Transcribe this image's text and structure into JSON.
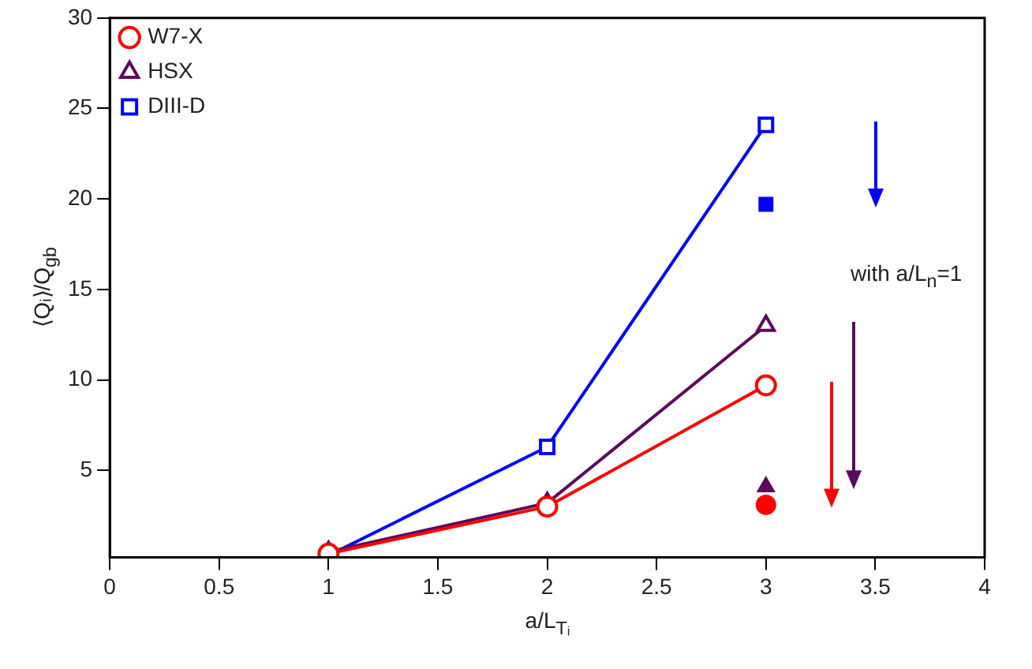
{
  "chart_data": {
    "type": "line",
    "xlabel": "a/L$_{Tᵢ}$",
    "ylabel": "⟨Qᵢ⟩/Q$_{gb}$",
    "xlim": [
      0,
      4
    ],
    "xticks": [
      0,
      0.5,
      1,
      1.5,
      2,
      2.5,
      3,
      3.5,
      4
    ],
    "ylim": [
      0.2,
      30
    ],
    "yticks": [
      5,
      10,
      15,
      20,
      25,
      30
    ],
    "grid": false,
    "legend": "top left",
    "annotations": [
      "with a/L$_{n}$=1"
    ],
    "series": [
      {
        "name": "W7-X",
        "color": "#ff0000",
        "marker": "circle",
        "x": [
          1,
          2,
          3
        ],
        "values": [
          0.4,
          3.0,
          9.7
        ]
      },
      {
        "name": "HSX",
        "color": "#5c0a5c",
        "marker": "triangle",
        "x": [
          1,
          2,
          3
        ],
        "values": [
          0.5,
          3.2,
          13.0
        ]
      },
      {
        "name": "DIII-D",
        "color": "#0000ff",
        "marker": "square",
        "x": [
          1,
          2,
          3
        ],
        "values": [
          0.3,
          6.3,
          24.1
        ]
      },
      {
        "type": "scatter",
        "color": "#ff0000",
        "marker": "circle",
        "x": [
          3
        ],
        "values": [
          3.1
        ]
      },
      {
        "type": "scatter",
        "color": "#5c0a5c",
        "marker": "triangle",
        "x": [
          3
        ],
        "values": [
          4.1
        ]
      },
      {
        "type": "scatter",
        "color": "#0000ff",
        "marker": "square",
        "x": [
          3
        ],
        "values": [
          19.7
        ]
      }
    ]
  }
}
